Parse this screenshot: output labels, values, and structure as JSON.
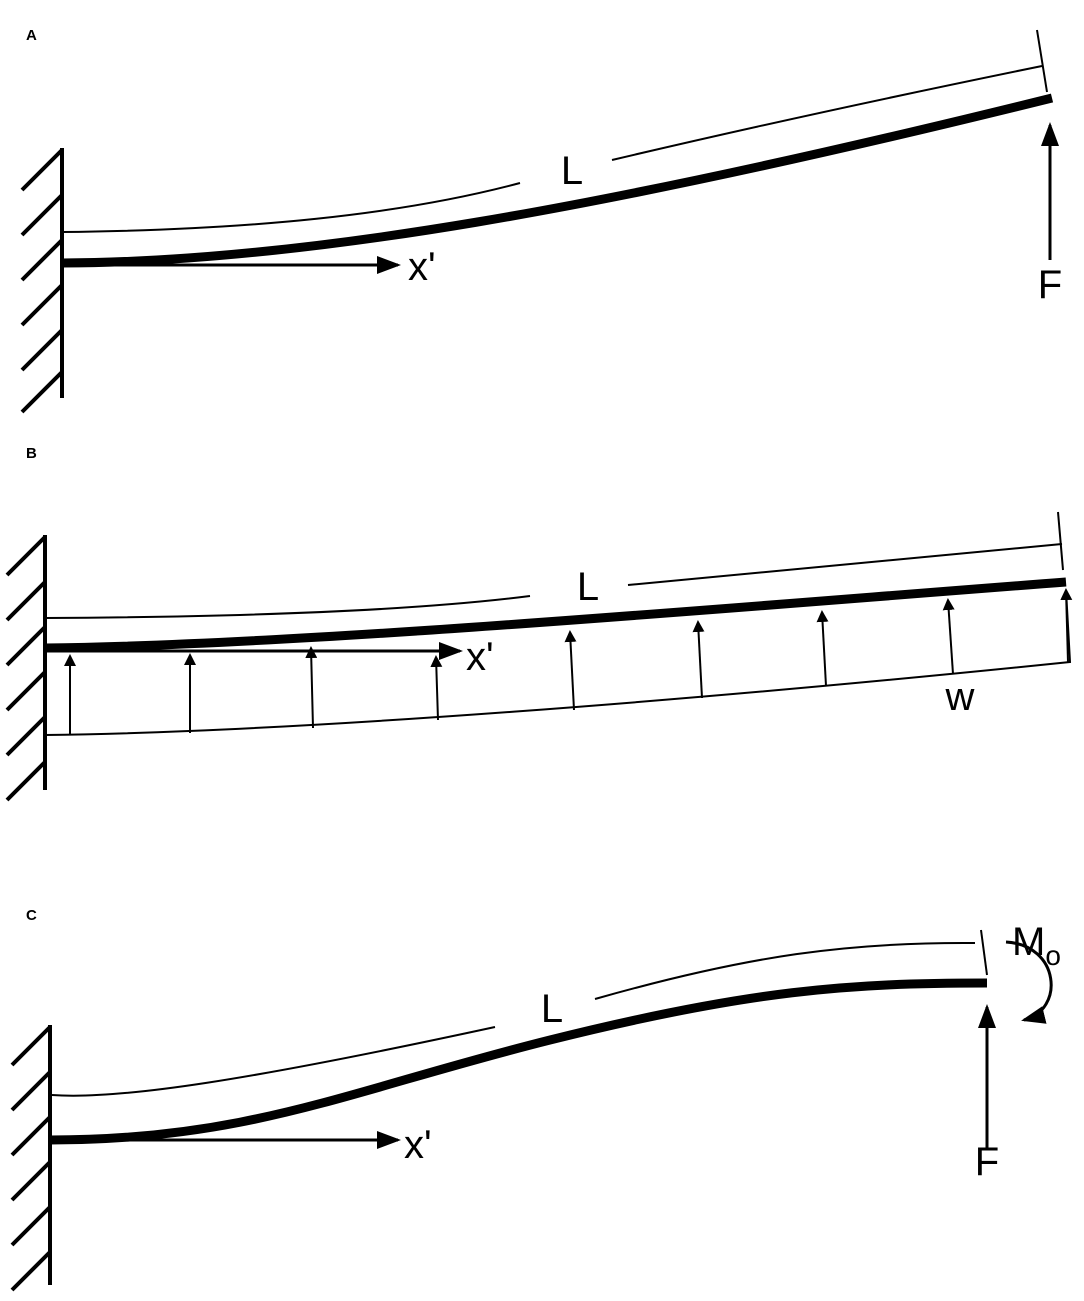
{
  "panels": [
    {
      "label": "A",
      "length_label": "L",
      "axis_label": "x'",
      "force_label": "F"
    },
    {
      "label": "B",
      "length_label": "L",
      "axis_label": "x'",
      "load_label": "w"
    },
    {
      "label": "C",
      "length_label": "L",
      "axis_label": "x'",
      "force_label": "F",
      "moment_label": {
        "main": "M",
        "subscript": "o"
      }
    }
  ]
}
